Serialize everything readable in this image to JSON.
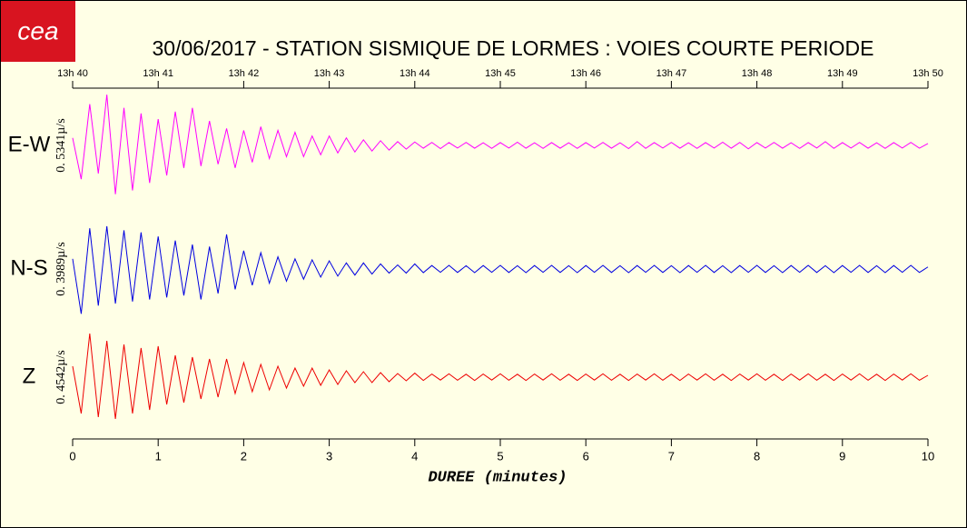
{
  "logo": "cea",
  "chart_data": {
    "type": "line",
    "title": "30/06/2017  -  STATION SISMIQUE DE LORMES : VOIES COURTE PERIODE",
    "xlabel": "DUREE (minutes)",
    "xlim": [
      0,
      10
    ],
    "xticks": [
      0,
      1,
      2,
      3,
      4,
      5,
      6,
      7,
      8,
      9,
      10
    ],
    "x2ticks": [
      {
        "value": 0,
        "label": "13h 40"
      },
      {
        "value": 1,
        "label": "13h 41"
      },
      {
        "value": 2,
        "label": "13h 42"
      },
      {
        "value": 3,
        "label": "13h 43"
      },
      {
        "value": 4,
        "label": "13h 44"
      },
      {
        "value": 5,
        "label": "13h 45"
      },
      {
        "value": 6,
        "label": "13h 46"
      },
      {
        "value": 7,
        "label": "13h 47"
      },
      {
        "value": 8,
        "label": "13h 48"
      },
      {
        "value": 9,
        "label": "13h 49"
      },
      {
        "value": 10,
        "label": "13h 50"
      }
    ],
    "x": [
      0,
      0.1,
      0.2,
      0.3,
      0.4,
      0.5,
      0.6,
      0.7,
      0.8,
      0.9,
      1,
      1.1,
      1.2,
      1.3,
      1.4,
      1.5,
      1.6,
      1.7,
      1.8,
      1.9,
      2,
      2.1,
      2.2,
      2.3,
      2.4,
      2.5,
      2.6,
      2.7,
      2.8,
      2.9,
      3,
      3.1,
      3.2,
      3.3,
      3.4,
      3.5,
      3.6,
      3.7,
      3.8,
      3.9,
      4,
      4.1,
      4.2,
      4.3,
      4.4,
      4.5,
      4.6,
      4.7,
      4.8,
      4.9,
      5,
      5.1,
      5.2,
      5.3,
      5.4,
      5.5,
      5.6,
      5.7,
      5.8,
      5.9,
      6,
      6.1,
      6.2,
      6.3,
      6.4,
      6.5,
      6.6,
      6.7,
      6.8,
      6.9,
      7,
      7.1,
      7.2,
      7.3,
      7.4,
      7.5,
      7.6,
      7.7,
      7.8,
      7.9,
      8,
      8.1,
      8.2,
      8.3,
      8.4,
      8.5,
      8.6,
      8.7,
      8.8,
      8.9,
      9,
      9.1,
      9.2,
      9.3,
      9.4,
      9.5,
      9.6,
      9.7,
      9.8,
      9.9,
      10
    ],
    "series": [
      {
        "name": "E-W",
        "scale_label": "0. 5341µ/s",
        "color": "#ff00ff",
        "ylim": [
          -0.3,
          0.3
        ],
        "values": [
          0.04,
          -0.18,
          0.22,
          -0.15,
          0.27,
          -0.26,
          0.2,
          -0.24,
          0.17,
          -0.2,
          0.14,
          -0.16,
          0.18,
          -0.12,
          0.2,
          -0.11,
          0.13,
          -0.1,
          0.09,
          -0.12,
          0.08,
          -0.09,
          0.1,
          -0.07,
          0.08,
          -0.06,
          0.07,
          -0.06,
          0.05,
          -0.05,
          0.05,
          -0.04,
          0.04,
          -0.035,
          0.03,
          -0.03,
          0.025,
          -0.025,
          0.02,
          -0.02,
          0.018,
          -0.015,
          0.016,
          -0.017,
          0.015,
          -0.014,
          0.016,
          -0.015,
          0.014,
          -0.016,
          0.015,
          -0.014,
          0.017,
          -0.015,
          0.014,
          -0.016,
          0.015,
          -0.015,
          0.014,
          -0.016,
          0.015,
          -0.014,
          0.016,
          -0.015,
          0.014,
          -0.017,
          0.02,
          -0.016,
          0.015,
          -0.014,
          0.016,
          -0.015,
          0.014,
          -0.016,
          0.015,
          -0.014,
          0.017,
          -0.015,
          0.016,
          -0.018,
          0.015,
          -0.014,
          0.016,
          -0.015,
          0.014,
          -0.016,
          0.015,
          -0.014,
          0.02,
          -0.016,
          0.015,
          -0.014,
          0.016,
          -0.015,
          0.014,
          -0.016,
          0.015,
          -0.014,
          0.016,
          -0.015,
          0.01
        ]
      },
      {
        "name": "N-S",
        "scale_label": "0. 3989µ/s",
        "color": "#0000e0",
        "ylim": [
          -0.25,
          0.25
        ],
        "values": [
          0.05,
          -0.22,
          0.2,
          -0.18,
          0.21,
          -0.17,
          0.19,
          -0.16,
          0.18,
          -0.15,
          0.16,
          -0.14,
          0.14,
          -0.13,
          0.12,
          -0.15,
          0.11,
          -0.12,
          0.17,
          -0.1,
          0.09,
          -0.08,
          0.08,
          -0.07,
          0.06,
          -0.06,
          0.05,
          -0.05,
          0.045,
          -0.04,
          0.04,
          -0.035,
          0.03,
          -0.03,
          0.03,
          -0.025,
          0.025,
          -0.02,
          0.02,
          -0.02,
          0.025,
          -0.018,
          0.017,
          -0.016,
          0.018,
          -0.017,
          0.016,
          -0.018,
          0.017,
          -0.016,
          0.018,
          -0.017,
          0.016,
          -0.018,
          0.017,
          -0.016,
          0.018,
          -0.017,
          0.016,
          -0.018,
          0.017,
          -0.016,
          0.018,
          -0.017,
          0.016,
          -0.018,
          0.017,
          -0.016,
          0.018,
          -0.017,
          0.016,
          -0.018,
          0.017,
          -0.016,
          0.018,
          -0.017,
          0.016,
          -0.018,
          0.017,
          -0.016,
          0.018,
          -0.017,
          0.016,
          -0.018,
          0.017,
          -0.016,
          0.018,
          -0.017,
          0.016,
          -0.018,
          0.017,
          -0.016,
          0.018,
          -0.017,
          0.016,
          -0.018,
          0.017,
          -0.016,
          0.018,
          -0.017,
          0.01
        ]
      },
      {
        "name": "Z",
        "scale_label": "0. 4542µ/s",
        "color": "#ee0000",
        "ylim": [
          -0.28,
          0.28
        ],
        "values": [
          0.06,
          -0.2,
          0.24,
          -0.22,
          0.2,
          -0.23,
          0.18,
          -0.2,
          0.16,
          -0.18,
          0.17,
          -0.15,
          0.12,
          -0.14,
          0.11,
          -0.12,
          0.1,
          -0.11,
          0.1,
          -0.09,
          0.08,
          -0.08,
          0.07,
          -0.07,
          0.06,
          -0.06,
          0.05,
          -0.05,
          0.05,
          -0.045,
          0.04,
          -0.04,
          0.035,
          -0.03,
          0.03,
          -0.03,
          0.025,
          -0.025,
          0.02,
          -0.02,
          0.022,
          -0.018,
          0.017,
          -0.016,
          0.018,
          -0.017,
          0.016,
          -0.018,
          0.017,
          -0.016,
          0.018,
          -0.017,
          0.016,
          -0.018,
          0.017,
          -0.016,
          0.018,
          -0.017,
          0.016,
          -0.018,
          0.017,
          -0.016,
          0.018,
          -0.017,
          0.016,
          -0.018,
          0.017,
          -0.016,
          0.018,
          -0.017,
          0.016,
          -0.018,
          0.017,
          -0.016,
          0.018,
          -0.017,
          0.016,
          -0.018,
          0.017,
          -0.016,
          0.018,
          -0.017,
          0.016,
          -0.018,
          0.017,
          -0.016,
          0.018,
          -0.017,
          0.016,
          -0.018,
          0.017,
          -0.016,
          0.018,
          -0.017,
          0.016,
          -0.018,
          0.017,
          -0.016,
          0.018,
          -0.017,
          0.01
        ]
      }
    ]
  }
}
